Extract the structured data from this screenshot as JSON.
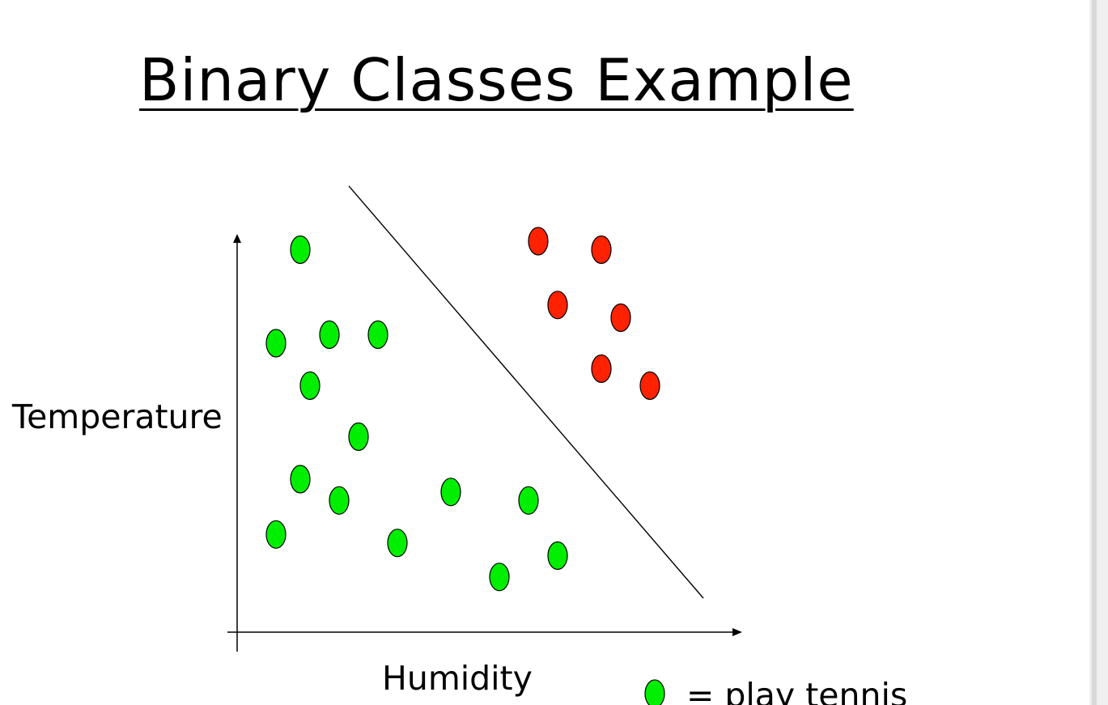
{
  "slide": {
    "title": "Binary Classes Example"
  },
  "axes": {
    "x_label": "Humidity",
    "y_label": "Temperature"
  },
  "legend": {
    "items": [
      {
        "symbol_color": "#00ee00",
        "text": "= play tennis"
      }
    ]
  },
  "colors": {
    "class_positive": "#00ee00",
    "class_negative": "#ff2200",
    "outline": "#000000"
  },
  "chart_data": {
    "type": "scatter",
    "title": "",
    "xlabel": "Humidity",
    "ylabel": "Temperature",
    "xlim": [
      0,
      100
    ],
    "ylim": [
      0,
      100
    ],
    "grid": false,
    "legend_placement": "bottom-right",
    "series": [
      {
        "name": "play tennis",
        "color": "#00ee00",
        "x": [
          13,
          8,
          19,
          29,
          15,
          25,
          13,
          21,
          8,
          33,
          44,
          60,
          54,
          66
        ],
        "y": [
          90,
          68,
          70,
          70,
          58,
          46,
          36,
          31,
          23,
          21,
          33,
          31,
          13,
          18
        ]
      },
      {
        "name": "",
        "color": "#ff2200",
        "x": [
          62,
          75,
          66,
          79,
          75,
          85
        ],
        "y": [
          92,
          90,
          77,
          74,
          62,
          58
        ]
      }
    ],
    "annotations": [
      {
        "type": "line",
        "label": "",
        "from": [
          23,
          105
        ],
        "to": [
          96,
          8
        ]
      }
    ]
  }
}
